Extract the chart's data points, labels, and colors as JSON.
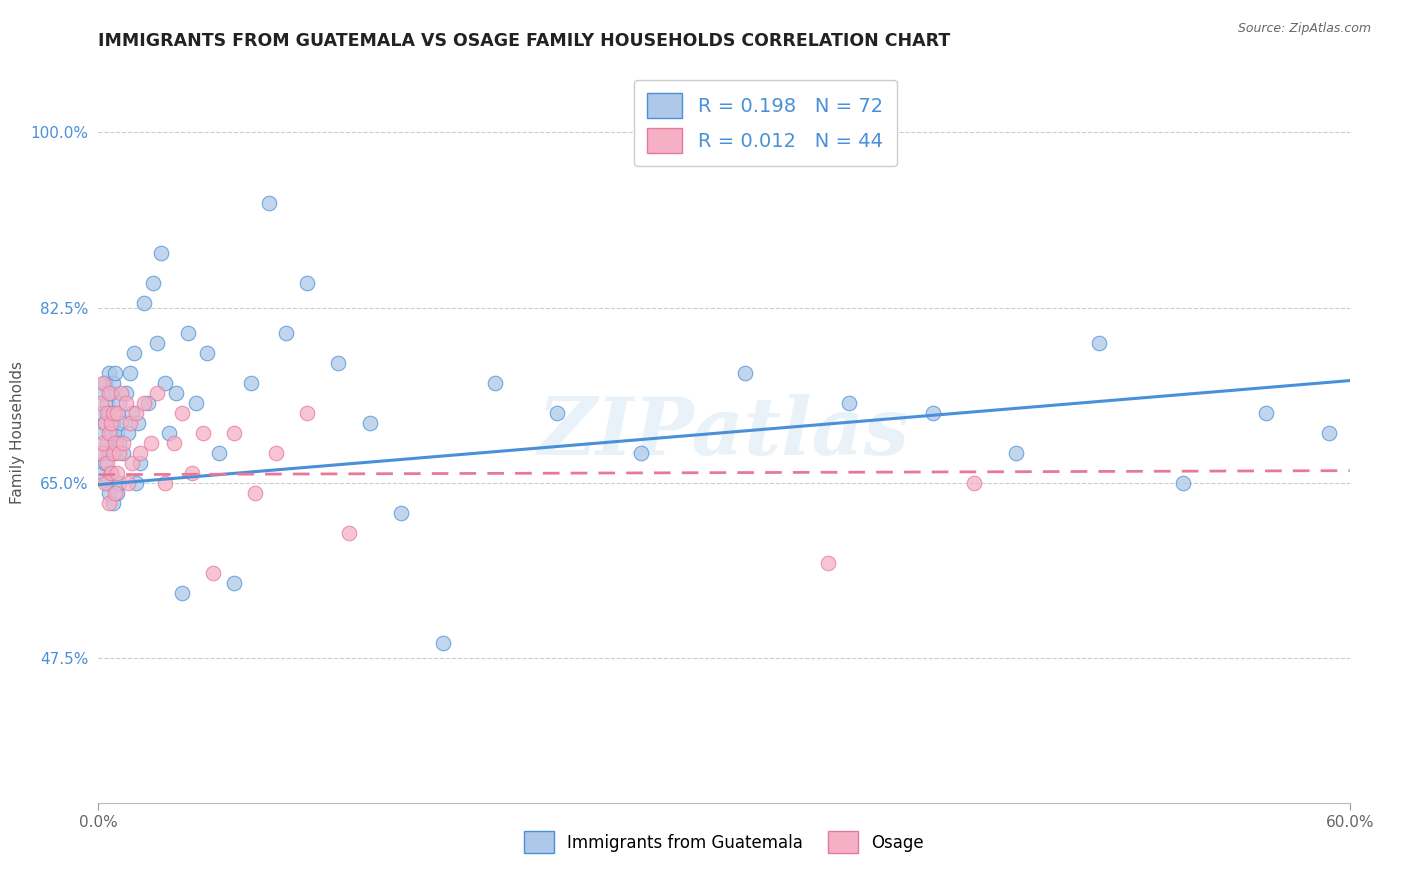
{
  "title": "IMMIGRANTS FROM GUATEMALA VS OSAGE FAMILY HOUSEHOLDS CORRELATION CHART",
  "source_text": "Source: ZipAtlas.com",
  "ylabel": "Family Households",
  "legend_label1": "Immigrants from Guatemala",
  "legend_label2": "Osage",
  "r1": 0.198,
  "n1": 72,
  "r2": 0.012,
  "n2": 44,
  "xlim": [
    0.0,
    0.6
  ],
  "ylim": [
    0.33,
    1.07
  ],
  "yticks": [
    0.475,
    0.65,
    0.825,
    1.0
  ],
  "ytick_labels": [
    "47.5%",
    "65.0%",
    "82.5%",
    "100.0%"
  ],
  "xticks": [
    0.0,
    0.6
  ],
  "xtick_labels": [
    "0.0%",
    "60.0%"
  ],
  "color1": "#adc8e8",
  "color2": "#f5b0c5",
  "line_color1": "#4a90d9",
  "line_color2": "#e8789a",
  "watermark": "ZIPatlas",
  "title_fontsize": 12.5,
  "axis_label_fontsize": 11,
  "tick_fontsize": 11,
  "scatter1_x": [
    0.001,
    0.001,
    0.002,
    0.002,
    0.002,
    0.003,
    0.003,
    0.003,
    0.004,
    0.004,
    0.004,
    0.005,
    0.005,
    0.005,
    0.005,
    0.006,
    0.006,
    0.006,
    0.007,
    0.007,
    0.007,
    0.008,
    0.008,
    0.008,
    0.009,
    0.009,
    0.01,
    0.01,
    0.01,
    0.011,
    0.012,
    0.013,
    0.014,
    0.015,
    0.016,
    0.017,
    0.018,
    0.019,
    0.02,
    0.022,
    0.024,
    0.026,
    0.028,
    0.03,
    0.032,
    0.034,
    0.037,
    0.04,
    0.043,
    0.047,
    0.052,
    0.058,
    0.065,
    0.073,
    0.082,
    0.09,
    0.1,
    0.115,
    0.13,
    0.145,
    0.165,
    0.19,
    0.22,
    0.26,
    0.31,
    0.36,
    0.4,
    0.44,
    0.48,
    0.52,
    0.56,
    0.59
  ],
  "scatter1_y": [
    0.72,
    0.68,
    0.74,
    0.7,
    0.66,
    0.75,
    0.71,
    0.67,
    0.73,
    0.69,
    0.65,
    0.76,
    0.72,
    0.68,
    0.64,
    0.74,
    0.7,
    0.66,
    0.75,
    0.71,
    0.63,
    0.72,
    0.68,
    0.76,
    0.7,
    0.64,
    0.73,
    0.69,
    0.65,
    0.71,
    0.68,
    0.74,
    0.7,
    0.76,
    0.72,
    0.78,
    0.65,
    0.71,
    0.67,
    0.83,
    0.73,
    0.85,
    0.79,
    0.88,
    0.75,
    0.7,
    0.74,
    0.54,
    0.8,
    0.73,
    0.78,
    0.68,
    0.55,
    0.75,
    0.93,
    0.8,
    0.85,
    0.77,
    0.71,
    0.62,
    0.49,
    0.75,
    0.72,
    0.68,
    0.76,
    0.73,
    0.72,
    0.68,
    0.79,
    0.65,
    0.72,
    0.7
  ],
  "scatter2_x": [
    0.001,
    0.001,
    0.002,
    0.002,
    0.003,
    0.003,
    0.004,
    0.004,
    0.005,
    0.005,
    0.005,
    0.006,
    0.006,
    0.007,
    0.007,
    0.008,
    0.008,
    0.009,
    0.009,
    0.01,
    0.011,
    0.012,
    0.013,
    0.014,
    0.015,
    0.016,
    0.018,
    0.02,
    0.022,
    0.025,
    0.028,
    0.032,
    0.036,
    0.04,
    0.045,
    0.05,
    0.055,
    0.065,
    0.075,
    0.085,
    0.1,
    0.12,
    0.35,
    0.42
  ],
  "scatter2_y": [
    0.73,
    0.68,
    0.75,
    0.69,
    0.71,
    0.65,
    0.72,
    0.67,
    0.74,
    0.7,
    0.63,
    0.71,
    0.66,
    0.68,
    0.72,
    0.64,
    0.69,
    0.66,
    0.72,
    0.68,
    0.74,
    0.69,
    0.73,
    0.65,
    0.71,
    0.67,
    0.72,
    0.68,
    0.73,
    0.69,
    0.74,
    0.65,
    0.69,
    0.72,
    0.66,
    0.7,
    0.56,
    0.7,
    0.64,
    0.68,
    0.72,
    0.6,
    0.57,
    0.65
  ],
  "trendline1_x0": 0.0,
  "trendline1_y0": 0.648,
  "trendline1_x1": 0.6,
  "trendline1_y1": 0.752,
  "trendline2_x0": 0.0,
  "trendline2_y0": 0.658,
  "trendline2_x1": 0.6,
  "trendline2_y1": 0.662
}
